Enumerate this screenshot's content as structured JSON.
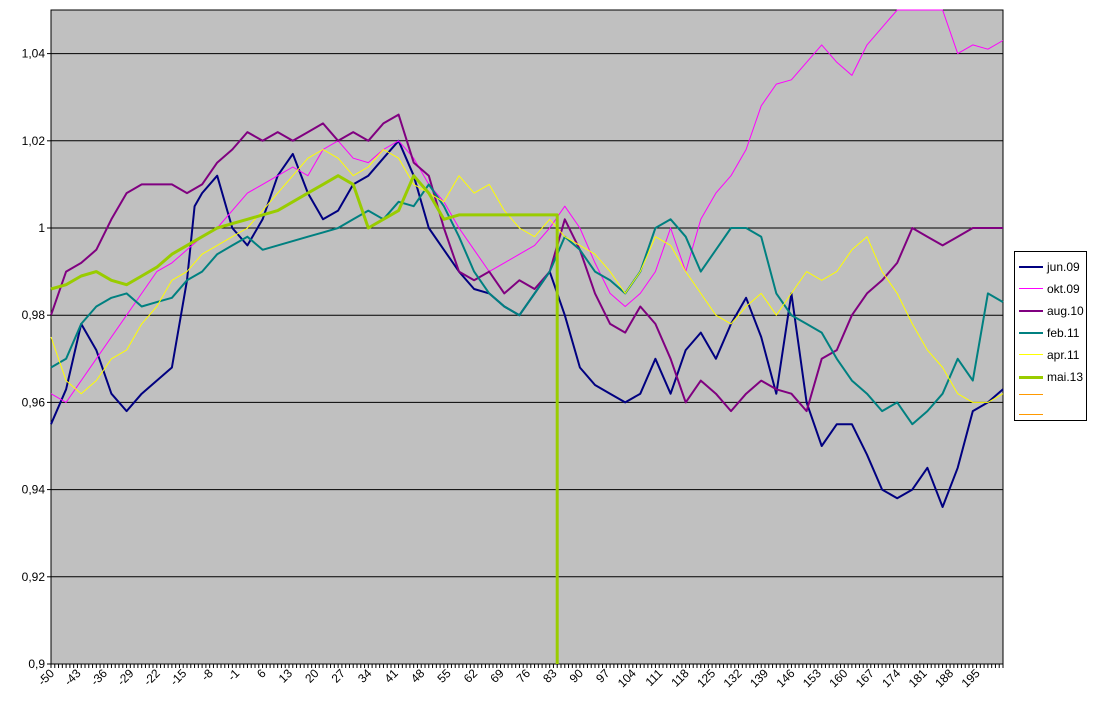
{
  "chart_data": {
    "type": "line",
    "title": "",
    "xlabel": "",
    "ylabel": "",
    "ylim": [
      0.9,
      1.05
    ],
    "xlim": [
      -50,
      202
    ],
    "grid": true,
    "legend_position": "right",
    "background_color": "#c0c0c0",
    "y_ticks": [
      "0,9",
      "0,92",
      "0,94",
      "0,96",
      "0,98",
      "1",
      "1,02",
      "1,04"
    ],
    "y_tick_values": [
      0.9,
      0.92,
      0.94,
      0.96,
      0.98,
      1.0,
      1.02,
      1.04
    ],
    "x_ticks": [
      "-50",
      "-43",
      "-36",
      "-29",
      "-22",
      "-15",
      "-8",
      "-1",
      "6",
      "13",
      "20",
      "27",
      "34",
      "41",
      "48",
      "55",
      "62",
      "69",
      "76",
      "83",
      "90",
      "97",
      "104",
      "111",
      "118",
      "125",
      "132",
      "139",
      "146",
      "153",
      "160",
      "167",
      "174",
      "181",
      "188",
      "195"
    ],
    "x_tick_values": [
      -50,
      -43,
      -36,
      -29,
      -22,
      -15,
      -8,
      -1,
      6,
      13,
      20,
      27,
      34,
      41,
      48,
      55,
      62,
      69,
      76,
      83,
      90,
      97,
      104,
      111,
      118,
      125,
      132,
      139,
      146,
      153,
      160,
      167,
      174,
      181,
      188,
      195
    ],
    "series": [
      {
        "name": "jun.09",
        "color": "#000080",
        "width": 2,
        "x": [
          -50,
          -46,
          -42,
          -38,
          -34,
          -30,
          -26,
          -22,
          -18,
          -14,
          -12,
          -10,
          -6,
          -2,
          2,
          6,
          10,
          14,
          18,
          22,
          26,
          30,
          34,
          38,
          42,
          46,
          50,
          54,
          58,
          62,
          66,
          70,
          74,
          78,
          82,
          86,
          90,
          94,
          98,
          102,
          106,
          110,
          114,
          118,
          122,
          126,
          130,
          134,
          138,
          142,
          146,
          150,
          154,
          158,
          162,
          166,
          170,
          174,
          178,
          182,
          186,
          190,
          194,
          198,
          202
        ],
        "y": [
          0.955,
          0.963,
          0.978,
          0.972,
          0.962,
          0.958,
          0.962,
          0.965,
          0.968,
          0.988,
          1.005,
          1.008,
          1.012,
          1.0,
          0.996,
          1.002,
          1.012,
          1.017,
          1.008,
          1.002,
          1.004,
          1.01,
          1.012,
          1.016,
          1.02,
          1.012,
          1.0,
          0.995,
          0.99,
          0.986,
          0.985,
          0.982,
          0.98,
          0.985,
          0.99,
          0.98,
          0.968,
          0.964,
          0.962,
          0.96,
          0.962,
          0.97,
          0.962,
          0.972,
          0.976,
          0.97,
          0.978,
          0.984,
          0.975,
          0.962,
          0.985,
          0.96,
          0.95,
          0.955,
          0.955,
          0.948,
          0.94,
          0.938,
          0.94,
          0.945,
          0.936,
          0.945,
          0.958,
          0.96,
          0.963
        ]
      },
      {
        "name": "okt.09",
        "color": "#ff00ff",
        "width": 1,
        "x": [
          -50,
          -46,
          -42,
          -38,
          -34,
          -30,
          -26,
          -22,
          -18,
          -14,
          -10,
          -6,
          -2,
          2,
          6,
          10,
          14,
          18,
          22,
          26,
          30,
          34,
          38,
          42,
          46,
          50,
          54,
          58,
          62,
          66,
          70,
          74,
          78,
          82,
          86,
          90,
          94,
          98,
          102,
          106,
          110,
          114,
          118,
          122,
          126,
          130,
          134,
          138,
          142,
          146,
          150,
          154,
          158,
          162,
          166,
          170,
          174,
          178,
          182,
          186,
          190,
          194,
          198,
          202
        ],
        "y": [
          0.962,
          0.96,
          0.965,
          0.97,
          0.975,
          0.98,
          0.985,
          0.99,
          0.992,
          0.995,
          0.998,
          1.0,
          1.004,
          1.008,
          1.01,
          1.012,
          1.014,
          1.012,
          1.018,
          1.02,
          1.016,
          1.015,
          1.018,
          1.02,
          1.016,
          1.01,
          1.006,
          1.0,
          0.995,
          0.99,
          0.992,
          0.994,
          0.996,
          1.0,
          1.005,
          1.0,
          0.992,
          0.985,
          0.982,
          0.985,
          0.99,
          1.0,
          0.99,
          1.002,
          1.008,
          1.012,
          1.018,
          1.028,
          1.033,
          1.034,
          1.038,
          1.042,
          1.038,
          1.035,
          1.042,
          1.046,
          1.05,
          1.05,
          1.05,
          1.05,
          1.04,
          1.042,
          1.041,
          1.043
        ]
      },
      {
        "name": "aug.10",
        "color": "#800080",
        "width": 2,
        "x": [
          -50,
          -46,
          -42,
          -38,
          -34,
          -30,
          -26,
          -22,
          -18,
          -14,
          -10,
          -6,
          -2,
          2,
          6,
          10,
          14,
          18,
          22,
          26,
          30,
          34,
          38,
          42,
          46,
          50,
          54,
          58,
          62,
          66,
          70,
          74,
          78,
          82,
          86,
          90,
          94,
          98,
          102,
          106,
          110,
          114,
          118,
          122,
          126,
          130,
          134,
          138,
          142,
          146,
          150,
          154,
          158,
          162,
          166,
          170,
          174,
          178,
          182,
          186,
          190,
          194,
          198,
          202
        ],
        "y": [
          0.98,
          0.99,
          0.992,
          0.995,
          1.002,
          1.008,
          1.01,
          1.01,
          1.01,
          1.008,
          1.01,
          1.015,
          1.018,
          1.022,
          1.02,
          1.022,
          1.02,
          1.022,
          1.024,
          1.02,
          1.022,
          1.02,
          1.024,
          1.026,
          1.015,
          1.012,
          1.0,
          0.99,
          0.988,
          0.99,
          0.985,
          0.988,
          0.986,
          0.99,
          1.002,
          0.995,
          0.985,
          0.978,
          0.976,
          0.982,
          0.978,
          0.97,
          0.96,
          0.965,
          0.962,
          0.958,
          0.962,
          0.965,
          0.963,
          0.962,
          0.958,
          0.97,
          0.972,
          0.98,
          0.985,
          0.988,
          0.992,
          1.0,
          0.998,
          0.996,
          0.998,
          1.0,
          1.0,
          1.0
        ]
      },
      {
        "name": "feb.11",
        "color": "#008080",
        "width": 2,
        "x": [
          -50,
          -46,
          -42,
          -38,
          -34,
          -30,
          -26,
          -22,
          -18,
          -14,
          -10,
          -6,
          -2,
          2,
          6,
          10,
          14,
          18,
          22,
          26,
          30,
          34,
          38,
          42,
          46,
          50,
          54,
          58,
          62,
          66,
          70,
          74,
          78,
          82,
          86,
          90,
          94,
          98,
          102,
          106,
          110,
          114,
          118,
          122,
          126,
          130,
          134,
          138,
          142,
          146,
          150,
          154,
          158,
          162,
          166,
          170,
          174,
          178,
          182,
          186,
          190,
          194,
          198,
          202
        ],
        "y": [
          0.968,
          0.97,
          0.978,
          0.982,
          0.984,
          0.985,
          0.982,
          0.983,
          0.984,
          0.988,
          0.99,
          0.994,
          0.996,
          0.998,
          0.995,
          0.996,
          0.997,
          0.998,
          0.999,
          1.0,
          1.002,
          1.004,
          1.002,
          1.006,
          1.005,
          1.01,
          1.005,
          0.998,
          0.99,
          0.985,
          0.982,
          0.98,
          0.985,
          0.99,
          0.998,
          0.995,
          0.99,
          0.988,
          0.985,
          0.99,
          1.0,
          1.002,
          0.998,
          0.99,
          0.995,
          1.0,
          1.0,
          0.998,
          0.985,
          0.98,
          0.978,
          0.976,
          0.97,
          0.965,
          0.962,
          0.958,
          0.96,
          0.955,
          0.958,
          0.962,
          0.97,
          0.965,
          0.985,
          0.983
        ]
      },
      {
        "name": "apr.11",
        "color": "#ffff00",
        "width": 1,
        "x": [
          -50,
          -46,
          -42,
          -38,
          -34,
          -30,
          -26,
          -22,
          -18,
          -14,
          -10,
          -6,
          -2,
          2,
          6,
          10,
          14,
          18,
          22,
          26,
          30,
          34,
          38,
          42,
          46,
          50,
          54,
          58,
          62,
          66,
          70,
          74,
          78,
          82,
          86,
          90,
          94,
          98,
          102,
          106,
          110,
          114,
          118,
          122,
          126,
          130,
          134,
          138,
          142,
          146,
          150,
          154,
          158,
          162,
          166,
          170,
          174,
          178,
          182,
          186,
          190,
          194,
          198,
          202
        ],
        "y": [
          0.975,
          0.965,
          0.962,
          0.965,
          0.97,
          0.972,
          0.978,
          0.982,
          0.988,
          0.99,
          0.994,
          0.996,
          0.998,
          1.0,
          1.004,
          1.008,
          1.012,
          1.016,
          1.018,
          1.016,
          1.012,
          1.014,
          1.018,
          1.016,
          1.01,
          1.008,
          1.006,
          1.012,
          1.008,
          1.01,
          1.004,
          1.0,
          0.998,
          1.002,
          0.998,
          0.996,
          0.994,
          0.99,
          0.985,
          0.99,
          0.998,
          0.996,
          0.99,
          0.985,
          0.98,
          0.978,
          0.982,
          0.985,
          0.98,
          0.985,
          0.99,
          0.988,
          0.99,
          0.995,
          0.998,
          0.99,
          0.985,
          0.978,
          0.972,
          0.968,
          0.962,
          0.96,
          0.96,
          0.962
        ]
      },
      {
        "name": "mai.13",
        "color": "#99cc00",
        "width": 3,
        "x": [
          -50,
          -46,
          -42,
          -38,
          -34,
          -30,
          -26,
          -22,
          -18,
          -14,
          -10,
          -6,
          -2,
          2,
          6,
          10,
          14,
          18,
          22,
          26,
          30,
          34,
          38,
          42,
          46,
          50,
          54,
          58,
          62,
          66,
          70,
          74,
          78,
          82,
          84,
          84
        ],
        "y": [
          0.986,
          0.987,
          0.989,
          0.99,
          0.988,
          0.987,
          0.989,
          0.991,
          0.994,
          0.996,
          0.998,
          1.0,
          1.001,
          1.002,
          1.003,
          1.004,
          1.006,
          1.008,
          1.01,
          1.012,
          1.01,
          1.0,
          1.002,
          1.004,
          1.012,
          1.008,
          1.002,
          1.003,
          1.003,
          1.003,
          1.003,
          1.003,
          1.003,
          1.003,
          1.003,
          0.9
        ]
      }
    ]
  }
}
